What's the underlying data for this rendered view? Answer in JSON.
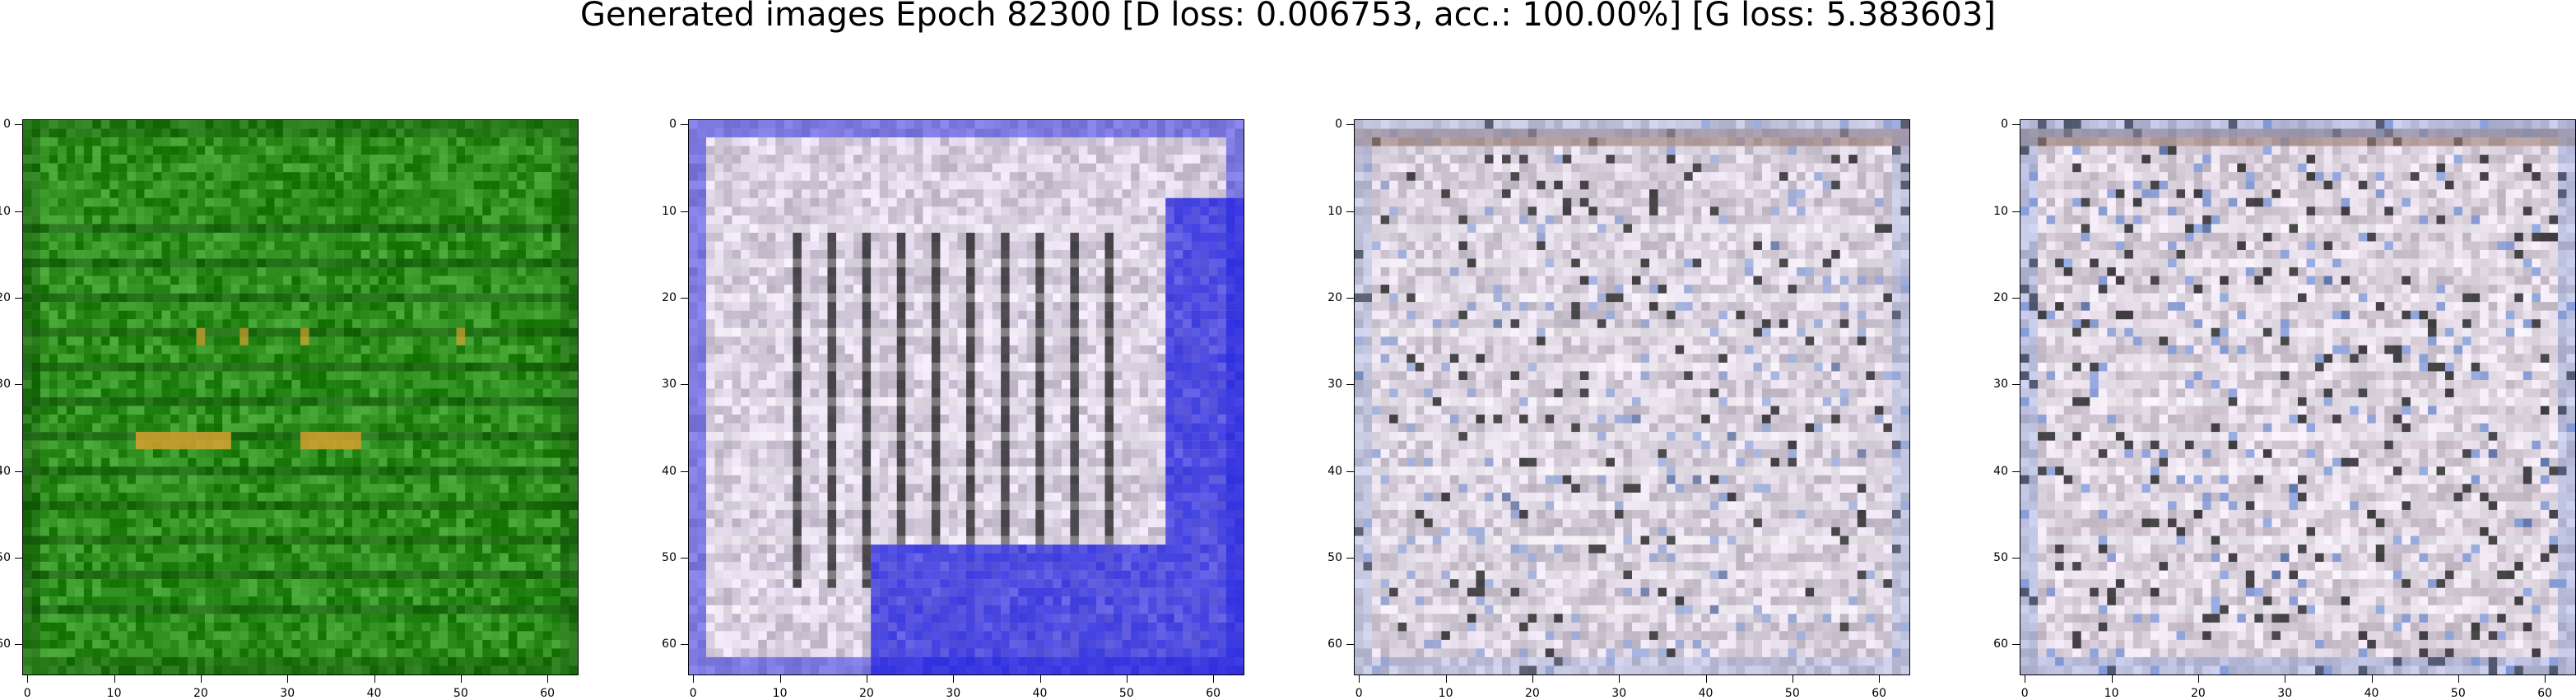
{
  "figure": {
    "title": "Generated images Epoch 82300 [D loss: 0.006753, acc.: 100.00%] [G loss: 5.383603]"
  },
  "axes": {
    "x_ticks": [
      "0",
      "10",
      "20",
      "30",
      "40",
      "50",
      "60"
    ],
    "y_ticks": [
      "0",
      "10",
      "20",
      "30",
      "40",
      "50",
      "60"
    ],
    "x_tick_values": [
      0,
      10,
      20,
      30,
      40,
      50,
      60
    ],
    "y_tick_values": [
      0,
      10,
      20,
      30,
      40,
      50,
      60
    ],
    "extent": [
      -0.5,
      63.5
    ]
  },
  "panels": [
    {
      "id": "image-1",
      "palette": "green",
      "base": "#2f8f1e",
      "accent": "#d9a030",
      "dark": "#0d3f08"
    },
    {
      "id": "image-2",
      "palette": "blue-grid",
      "base": "#d8cfe0",
      "accent": "#2424e0",
      "dark": "#1a1a1a"
    },
    {
      "id": "image-3",
      "palette": "pale",
      "base": "#d8d0dc",
      "accent": "#8aa0d8",
      "dark": "#222222"
    },
    {
      "id": "image-4",
      "palette": "pale",
      "base": "#dbd2de",
      "accent": "#6f8fd8",
      "dark": "#1e1e1e"
    }
  ]
}
